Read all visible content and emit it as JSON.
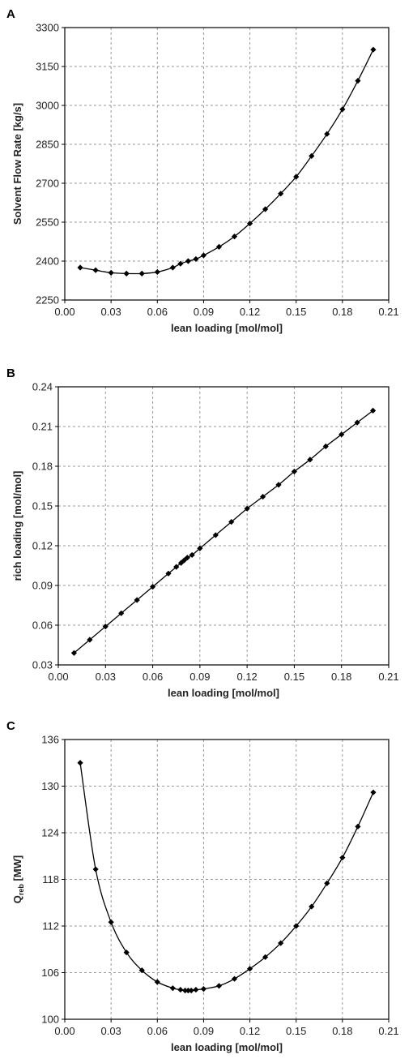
{
  "chart_data": [
    {
      "panel_label": "A",
      "type": "line",
      "xlabel": "lean loading [mol/mol]",
      "ylabel": "Solvent Flow Rate [kg/s]",
      "xlim": [
        0.0,
        0.21
      ],
      "ylim": [
        2250,
        3300
      ],
      "xticks": [
        "0.00",
        "0.03",
        "0.06",
        "0.09",
        "0.12",
        "0.15",
        "0.18",
        "0.21"
      ],
      "yticks": [
        "2250",
        "2400",
        "2550",
        "2700",
        "2850",
        "3000",
        "3150",
        "3300"
      ],
      "grid": true,
      "marker": "diamond",
      "x": [
        0.01,
        0.02,
        0.03,
        0.04,
        0.05,
        0.06,
        0.07,
        0.075,
        0.08,
        0.085,
        0.09,
        0.1,
        0.11,
        0.12,
        0.13,
        0.14,
        0.15,
        0.16,
        0.17,
        0.18,
        0.19,
        0.2
      ],
      "y": [
        2375,
        2365,
        2355,
        2352,
        2352,
        2358,
        2375,
        2390,
        2400,
        2408,
        2422,
        2455,
        2495,
        2545,
        2600,
        2660,
        2725,
        2805,
        2890,
        2985,
        3095,
        3215
      ]
    },
    {
      "panel_label": "B",
      "type": "line",
      "xlabel": "lean loading [mol/mol]",
      "ylabel": "rich loading [mol/mol]",
      "xlim": [
        0.0,
        0.21
      ],
      "ylim": [
        0.03,
        0.24
      ],
      "xticks": [
        "0.00",
        "0.03",
        "0.06",
        "0.09",
        "0.12",
        "0.15",
        "0.18",
        "0.21"
      ],
      "yticks": [
        "0.03",
        "0.06",
        "0.09",
        "0.12",
        "0.15",
        "0.18",
        "0.21",
        "0.24"
      ],
      "grid": true,
      "marker": "diamond",
      "x": [
        0.01,
        0.02,
        0.03,
        0.04,
        0.05,
        0.06,
        0.07,
        0.075,
        0.078,
        0.08,
        0.082,
        0.085,
        0.09,
        0.1,
        0.11,
        0.12,
        0.13,
        0.14,
        0.15,
        0.16,
        0.17,
        0.18,
        0.19,
        0.2
      ],
      "y": [
        0.039,
        0.049,
        0.059,
        0.069,
        0.079,
        0.089,
        0.099,
        0.104,
        0.107,
        0.109,
        0.111,
        0.113,
        0.118,
        0.128,
        0.138,
        0.148,
        0.157,
        0.166,
        0.176,
        0.185,
        0.195,
        0.204,
        0.213,
        0.222
      ]
    },
    {
      "panel_label": "C",
      "type": "line",
      "xlabel": "lean loading [mol/mol]",
      "ylabel_main": "Q",
      "ylabel_sub": "reb",
      "ylabel_unit": " [MW]",
      "xlim": [
        0.0,
        0.21
      ],
      "ylim": [
        100,
        136
      ],
      "xticks": [
        "0.00",
        "0.03",
        "0.06",
        "0.09",
        "0.12",
        "0.15",
        "0.18",
        "0.21"
      ],
      "yticks": [
        "100",
        "106",
        "112",
        "118",
        "124",
        "130",
        "136"
      ],
      "grid": true,
      "marker": "diamond",
      "x": [
        0.01,
        0.02,
        0.03,
        0.04,
        0.05,
        0.06,
        0.07,
        0.075,
        0.078,
        0.08,
        0.082,
        0.085,
        0.09,
        0.1,
        0.11,
        0.12,
        0.13,
        0.14,
        0.15,
        0.16,
        0.17,
        0.18,
        0.19,
        0.2
      ],
      "y": [
        133.0,
        119.3,
        112.5,
        108.6,
        106.3,
        104.8,
        104.0,
        103.8,
        103.7,
        103.7,
        103.7,
        103.8,
        103.9,
        104.3,
        105.2,
        106.5,
        108.0,
        109.8,
        112.0,
        114.5,
        117.5,
        120.8,
        124.8,
        129.2
      ]
    }
  ]
}
